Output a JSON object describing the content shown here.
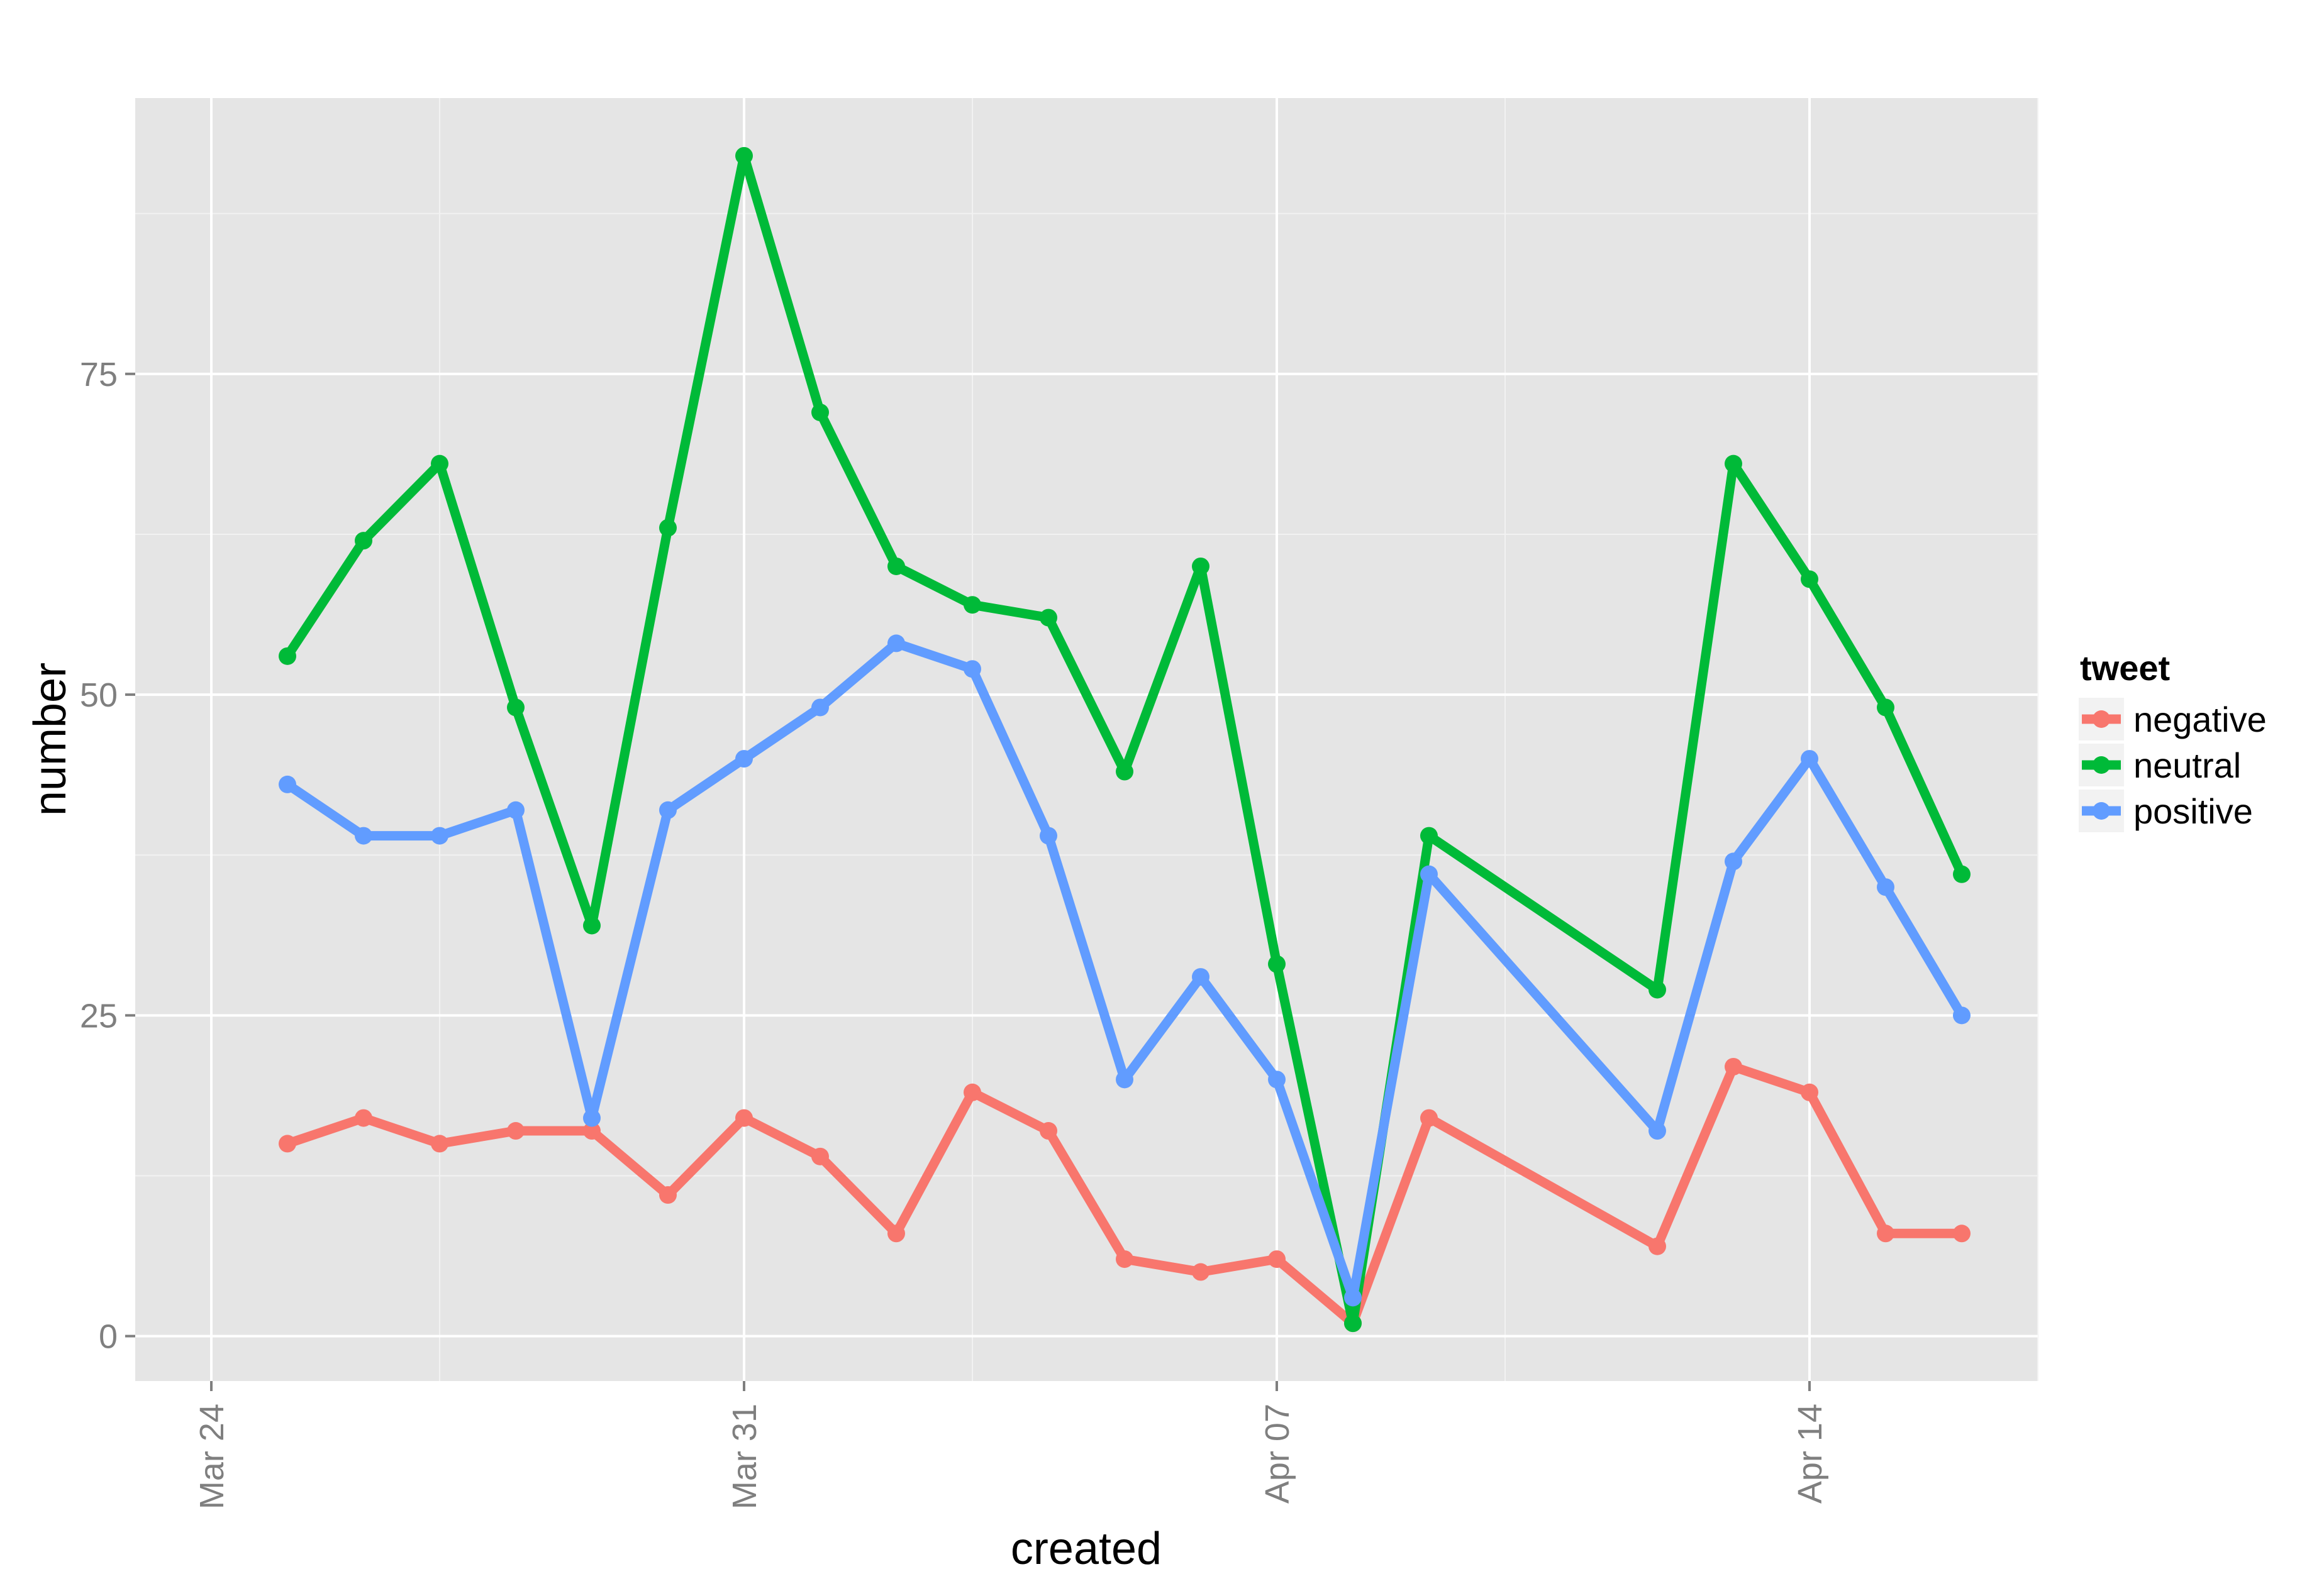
{
  "chart_data": {
    "type": "line",
    "title": "",
    "xlabel": "created",
    "ylabel": "number",
    "x_ticks": [
      "Mar 24",
      "Mar 31",
      "Apr 07",
      "Apr 14"
    ],
    "y_ticks": [
      "0",
      "25",
      "50",
      "75"
    ],
    "ylim": [
      -3.5,
      96.5
    ],
    "xlim": [
      "2015-03-23",
      "2015-04-17"
    ],
    "grid": true,
    "legend": {
      "title": "tweet",
      "position": "right"
    },
    "x": [
      "2015-03-25",
      "2015-03-26",
      "2015-03-27",
      "2015-03-28",
      "2015-03-29",
      "2015-03-30",
      "2015-03-31",
      "2015-04-01",
      "2015-04-02",
      "2015-04-03",
      "2015-04-04",
      "2015-04-05",
      "2015-04-06",
      "2015-04-07",
      "2015-04-08",
      "2015-04-09",
      "2015-04-12",
      "2015-04-13",
      "2015-04-14",
      "2015-04-15",
      "2015-04-16"
    ],
    "series": [
      {
        "name": "negative",
        "color": "#f8766d",
        "values": [
          15,
          17,
          15,
          16,
          16,
          11,
          17,
          14,
          8,
          19,
          16,
          6,
          5,
          6,
          1,
          17,
          7,
          21,
          19,
          8,
          8
        ]
      },
      {
        "name": "neutral",
        "color": "#00ba38",
        "values": [
          53,
          62,
          68,
          49,
          32,
          63,
          92,
          72,
          60,
          57,
          56,
          44,
          60,
          29,
          1,
          39,
          27,
          68,
          59,
          49,
          36
        ]
      },
      {
        "name": "positive",
        "color": "#619cff",
        "values": [
          43,
          39,
          39,
          41,
          17,
          41,
          45,
          49,
          54,
          52,
          39,
          20,
          28,
          20,
          3,
          36,
          16,
          37,
          45,
          35,
          25
        ]
      }
    ]
  }
}
